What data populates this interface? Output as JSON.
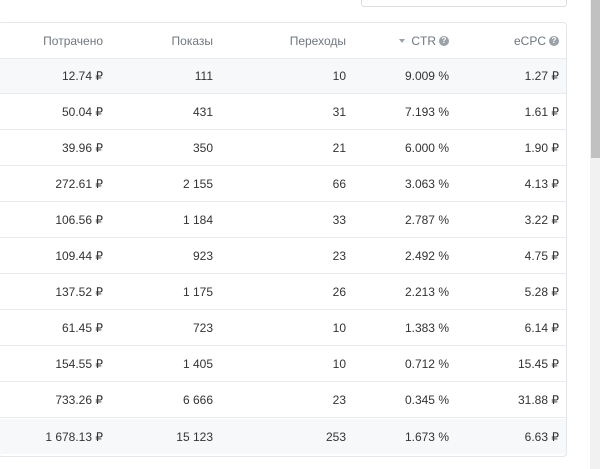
{
  "table": {
    "headers": {
      "spent": "Потрачено",
      "impressions": "Показы",
      "clicks": "Переходы",
      "ctr": "CTR",
      "ecpc": "eCPC"
    },
    "help_glyph": "?",
    "rows": [
      {
        "spent": "12.74 ₽",
        "impressions": "111",
        "clicks": "10",
        "ctr": "9.009 %",
        "ecpc": "1.27 ₽"
      },
      {
        "spent": "50.04 ₽",
        "impressions": "431",
        "clicks": "31",
        "ctr": "7.193 %",
        "ecpc": "1.61 ₽"
      },
      {
        "spent": "39.96 ₽",
        "impressions": "350",
        "clicks": "21",
        "ctr": "6.000 %",
        "ecpc": "1.90 ₽"
      },
      {
        "spent": "272.61 ₽",
        "impressions": "2 155",
        "clicks": "66",
        "ctr": "3.063 %",
        "ecpc": "4.13 ₽"
      },
      {
        "spent": "106.56 ₽",
        "impressions": "1 184",
        "clicks": "33",
        "ctr": "2.787 %",
        "ecpc": "3.22 ₽"
      },
      {
        "spent": "109.44 ₽",
        "impressions": "923",
        "clicks": "23",
        "ctr": "2.492 %",
        "ecpc": "4.75 ₽"
      },
      {
        "spent": "137.52 ₽",
        "impressions": "1 175",
        "clicks": "26",
        "ctr": "2.213 %",
        "ecpc": "5.28 ₽"
      },
      {
        "spent": "61.45 ₽",
        "impressions": "723",
        "clicks": "10",
        "ctr": "1.383 %",
        "ecpc": "6.14 ₽"
      },
      {
        "spent": "154.55 ₽",
        "impressions": "1 405",
        "clicks": "10",
        "ctr": "0.712 %",
        "ecpc": "15.45 ₽"
      },
      {
        "spent": "733.26 ₽",
        "impressions": "6 666",
        "clicks": "23",
        "ctr": "0.345 %",
        "ecpc": "31.88 ₽"
      }
    ],
    "total": {
      "spent": "1 678.13 ₽",
      "impressions": "15 123",
      "clicks": "253",
      "ctr": "1.673 %",
      "ecpc": "6.63 ₽"
    }
  }
}
